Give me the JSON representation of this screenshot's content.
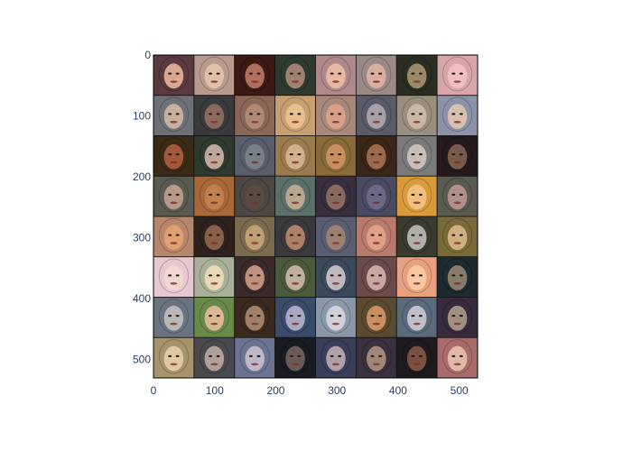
{
  "chart_data": {
    "type": "image",
    "title": "",
    "xlabel": "",
    "ylabel": "",
    "grid": false,
    "xlim": [
      0,
      530
    ],
    "ylim": [
      530,
      0
    ],
    "x_ticks": [
      0,
      100,
      200,
      300,
      400,
      500
    ],
    "y_ticks": [
      0,
      100,
      200,
      300,
      400,
      500
    ],
    "image_grid": {
      "rows": 8,
      "cols": 8,
      "content": "generated face thumbnails"
    },
    "tile_palette": [
      [
        "#5a3a3e",
        "#b99a8e",
        "#3a1a12",
        "#2e3a2e",
        "#b08a8a",
        "#9a8a86",
        "#2a2e22",
        "#d9a6a8"
      ],
      [
        "#6e7078",
        "#3a3a3e",
        "#8a6656",
        "#c8a070",
        "#a8887c",
        "#5a5a6a",
        "#9a8e7e",
        "#8c92a8"
      ],
      [
        "#3a2a16",
        "#2e3a2e",
        "#5a5e6a",
        "#9a7a4e",
        "#8a6a3a",
        "#3a2618",
        "#7a7a7a",
        "#241a1e"
      ],
      [
        "#5a5a50",
        "#a8683a",
        "#4e4642",
        "#5a7068",
        "#3a2e3e",
        "#4a4a62",
        "#d89a3a",
        "#5a5a50"
      ],
      [
        "#b8866a",
        "#2e221e",
        "#7a6a4e",
        "#3a3a3e",
        "#5a5e70",
        "#b87a6a",
        "#3a3a2e",
        "#7a6a3a"
      ],
      [
        "#e8c8d0",
        "#a8b09a",
        "#3a2a2a",
        "#4a5a3a",
        "#3a4a5a",
        "#6a4a4a",
        "#e8a080",
        "#1e2a2e"
      ],
      [
        "#6a7480",
        "#6a8a4a",
        "#3a2a1e",
        "#3a4a6a",
        "#8a98a8",
        "#5a4a30",
        "#5a6a7a",
        "#3a2a3e"
      ],
      [
        "#a8946a",
        "#4a4a4e",
        "#6a7490",
        "#1a1a22",
        "#3a3e5a",
        "#3a3040",
        "#1e1a1e",
        "#a86a6a"
      ]
    ],
    "skin_palette": [
      [
        "#d8a890",
        "#e0c0a8",
        "#b07060",
        "#a08070",
        "#e8b8a0",
        "#d8b0a0",
        "#9a8a6a",
        "#f0c0c0"
      ],
      [
        "#c8b0a0",
        "#8a6a5a",
        "#b08878",
        "#e8c090",
        "#d8a088",
        "#a8a0a8",
        "#c8b8a8",
        "#d8c0b0"
      ],
      [
        "#a05a3a",
        "#c0a898",
        "#7a8088",
        "#d0b088",
        "#c89060",
        "#9a6a4a",
        "#c8c0b8",
        "#7a5a4a"
      ],
      [
        "#b89888",
        "#c08050",
        "#5a4a40",
        "#b8a890",
        "#8a6a60",
        "#6a6a88",
        "#f0c080",
        "#b09088"
      ],
      [
        "#e0a070",
        "#8a6048",
        "#c0a070",
        "#b08068",
        "#9a8070",
        "#e0a088",
        "#b0b0a8",
        "#d0b080"
      ],
      [
        "#f0d8d0",
        "#e8d8b8",
        "#c09080",
        "#c0b0a0",
        "#c0b8c0",
        "#c8a8a0",
        "#f8c8a0",
        "#8a7a6a"
      ],
      [
        "#b8b8b8",
        "#d8b890",
        "#a08068",
        "#a8a8c0",
        "#d0d0d8",
        "#c89060",
        "#c0c0c8",
        "#a09080"
      ],
      [
        "#e0c8a0",
        "#b0a098",
        "#c0b8c8",
        "#6a5a58",
        "#b0a0a8",
        "#a08878",
        "#7a5040",
        "#e0b8a8"
      ]
    ]
  }
}
